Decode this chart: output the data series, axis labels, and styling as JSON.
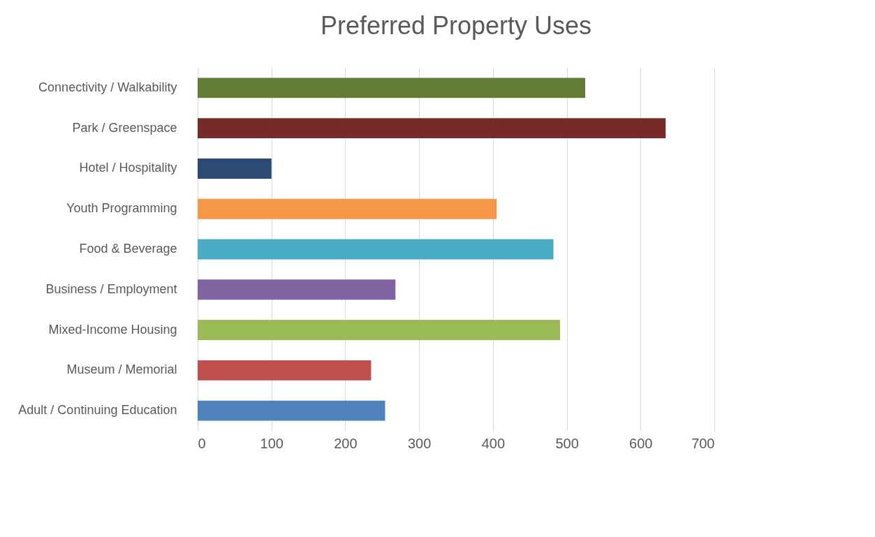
{
  "chart_data": {
    "type": "bar",
    "orientation": "horizontal",
    "title": "Preferred Property Uses",
    "categories": [
      "Connectivity / Walkability",
      "Park / Greenspace",
      "Hotel / Hospitality",
      "Youth Programming",
      "Food & Beverage",
      "Business / Employment",
      "Mixed-Income Housing",
      "Museum / Memorial",
      "Adult / Continuing Education"
    ],
    "values": [
      525,
      634,
      100,
      405,
      482,
      268,
      491,
      235,
      254
    ],
    "colors": [
      "#637b34",
      "#772b29",
      "#2b4b73",
      "#f79646",
      "#4bacc6",
      "#8064a2",
      "#9bbb59",
      "#c0504d",
      "#4f81bd"
    ],
    "xlim": [
      0,
      700
    ],
    "xticks": [
      0,
      100,
      200,
      300,
      400,
      500,
      600,
      700
    ],
    "grid": "x"
  }
}
